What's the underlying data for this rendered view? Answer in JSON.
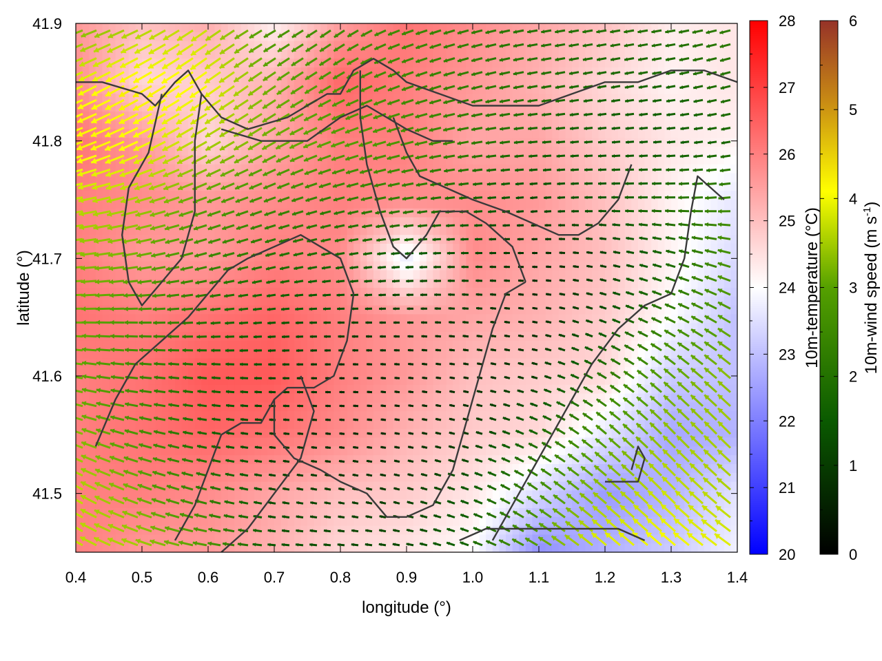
{
  "chart_data": {
    "type": "heatmap",
    "title": "",
    "xlabel": "longitude (°)",
    "ylabel": "latitude (°)",
    "xlim": [
      0.4,
      1.4
    ],
    "ylim": [
      41.45,
      41.9
    ],
    "x_ticks": [
      "0.4",
      "0.5",
      "0.6",
      "0.7",
      "0.8",
      "0.9",
      "1.0",
      "1.1",
      "1.2",
      "1.3",
      "1.4"
    ],
    "y_ticks": [
      "41.5",
      "41.6",
      "41.7",
      "41.8",
      "41.9"
    ],
    "colorbars": [
      {
        "label": "10m-temperature (°C)",
        "range": [
          20,
          28
        ],
        "ticks": [
          "20",
          "21",
          "22",
          "23",
          "24",
          "25",
          "26",
          "27",
          "28"
        ],
        "colors": [
          "#0000ff",
          "#ffffff",
          "#ff0000"
        ]
      },
      {
        "label": "10m-wind speed (m s",
        "label_sup": "-1",
        "label_end": ")",
        "range": [
          0,
          6
        ],
        "ticks": [
          "0",
          "1",
          "2",
          "3",
          "4",
          "5",
          "6"
        ],
        "colors": [
          "#000000",
          "#0a5a00",
          "#55a000",
          "#ffff00",
          "#c88a14",
          "#963228"
        ]
      }
    ],
    "temperature_field": {
      "lon": [
        0.4,
        0.5,
        0.6,
        0.7,
        0.8,
        0.9,
        1.0,
        1.1,
        1.2,
        1.3,
        1.4
      ],
      "lat": [
        41.9,
        41.85,
        41.8,
        41.75,
        41.7,
        41.65,
        41.6,
        41.55,
        41.5,
        41.45
      ],
      "values_c": [
        [
          25.6,
          25.0,
          25.3,
          24.2,
          25.5,
          26.2,
          25.8,
          25.4,
          25.0,
          24.3,
          24.4
        ],
        [
          25.8,
          24.6,
          24.8,
          25.2,
          26.4,
          26.0,
          25.6,
          25.2,
          24.6,
          24.2,
          24.4
        ],
        [
          26.2,
          25.6,
          24.6,
          25.4,
          26.0,
          26.0,
          25.4,
          25.4,
          24.8,
          24.4,
          24.2
        ],
        [
          26.0,
          25.8,
          25.6,
          25.8,
          26.0,
          25.8,
          25.8,
          25.6,
          25.0,
          24.2,
          23.6
        ],
        [
          26.0,
          25.6,
          25.6,
          26.0,
          25.8,
          23.6,
          25.8,
          25.4,
          25.0,
          24.2,
          23.4
        ],
        [
          26.2,
          26.0,
          26.2,
          26.4,
          26.0,
          25.6,
          25.4,
          25.2,
          24.8,
          24.0,
          23.0
        ],
        [
          26.0,
          26.2,
          26.6,
          26.6,
          26.0,
          25.6,
          25.0,
          24.8,
          24.6,
          23.2,
          23.0
        ],
        [
          26.0,
          26.2,
          26.4,
          26.2,
          25.8,
          25.2,
          24.8,
          24.6,
          23.6,
          22.6,
          22.8
        ],
        [
          26.0,
          26.0,
          25.8,
          25.4,
          25.0,
          24.8,
          24.4,
          23.4,
          22.4,
          22.8,
          23.6
        ],
        [
          26.0,
          25.6,
          25.6,
          25.2,
          24.6,
          24.4,
          24.0,
          22.2,
          22.8,
          23.2,
          23.8
        ]
      ]
    },
    "wind_field": {
      "lon": [
        0.4,
        0.5,
        0.6,
        0.7,
        0.8,
        0.9,
        1.0,
        1.1,
        1.2,
        1.3,
        1.4
      ],
      "lat": [
        41.9,
        41.85,
        41.8,
        41.75,
        41.7,
        41.65,
        41.6,
        41.55,
        41.5,
        41.45
      ],
      "speed_m_s": [
        [
          2.6,
          3.0,
          3.2,
          2.2,
          2.0,
          2.0,
          1.8,
          1.6,
          1.6,
          1.6,
          1.8
        ],
        [
          3.4,
          3.8,
          3.6,
          2.6,
          2.2,
          2.0,
          1.8,
          1.6,
          1.4,
          1.4,
          1.6
        ],
        [
          3.8,
          3.6,
          3.0,
          2.6,
          2.4,
          2.2,
          1.8,
          1.4,
          1.2,
          1.2,
          1.4
        ],
        [
          3.2,
          3.0,
          2.4,
          2.0,
          1.8,
          1.8,
          1.4,
          1.0,
          1.2,
          1.6,
          2.0
        ],
        [
          2.8,
          2.6,
          2.0,
          1.6,
          1.4,
          1.2,
          1.0,
          0.6,
          0.8,
          1.4,
          2.2
        ],
        [
          2.6,
          2.2,
          1.6,
          1.2,
          1.0,
          0.8,
          0.8,
          0.6,
          1.0,
          1.8,
          2.4
        ],
        [
          2.6,
          2.0,
          1.4,
          1.0,
          0.6,
          0.6,
          0.6,
          0.8,
          1.6,
          2.4,
          2.8
        ],
        [
          2.8,
          2.2,
          1.4,
          0.8,
          0.6,
          0.6,
          0.8,
          1.4,
          2.2,
          2.8,
          3.0
        ],
        [
          3.2,
          2.6,
          1.8,
          1.0,
          0.8,
          0.8,
          1.2,
          2.0,
          2.8,
          3.2,
          3.0
        ],
        [
          3.2,
          3.0,
          2.4,
          1.2,
          1.0,
          1.0,
          1.4,
          2.4,
          3.4,
          3.6,
          3.4
        ]
      ],
      "direction_toward_deg": [
        [
          200,
          205,
          215,
          210,
          215,
          200,
          195,
          190,
          190,
          190,
          195
        ],
        [
          205,
          210,
          215,
          215,
          210,
          200,
          195,
          190,
          190,
          190,
          195
        ],
        [
          200,
          205,
          210,
          210,
          200,
          195,
          190,
          185,
          185,
          185,
          190
        ],
        [
          190,
          195,
          200,
          200,
          195,
          190,
          185,
          185,
          180,
          180,
          185
        ],
        [
          185,
          190,
          195,
          195,
          190,
          185,
          180,
          180,
          170,
          165,
          165
        ],
        [
          180,
          180,
          185,
          185,
          180,
          180,
          175,
          170,
          160,
          155,
          150
        ],
        [
          170,
          175,
          175,
          180,
          180,
          175,
          170,
          165,
          150,
          140,
          140
        ],
        [
          160,
          165,
          170,
          175,
          175,
          170,
          165,
          155,
          140,
          135,
          135
        ],
        [
          150,
          160,
          165,
          170,
          170,
          165,
          160,
          145,
          140,
          135,
          140
        ],
        [
          150,
          160,
          170,
          175,
          175,
          170,
          160,
          150,
          140,
          140,
          145
        ]
      ]
    },
    "boundaries_lonlat": [
      [
        [
          0.4,
          41.85
        ],
        [
          0.44,
          41.85
        ],
        [
          0.5,
          41.84
        ],
        [
          0.52,
          41.83
        ],
        [
          0.55,
          41.85
        ],
        [
          0.57,
          41.86
        ],
        [
          0.59,
          41.84
        ],
        [
          0.62,
          41.82
        ],
        [
          0.66,
          41.81
        ],
        [
          0.72,
          41.82
        ],
        [
          0.78,
          41.84
        ],
        [
          0.8,
          41.84
        ],
        [
          0.82,
          41.86
        ],
        [
          0.85,
          41.87
        ],
        [
          0.88,
          41.86
        ],
        [
          0.9,
          41.85
        ],
        [
          0.95,
          41.84
        ],
        [
          1.0,
          41.83
        ],
        [
          1.05,
          41.83
        ],
        [
          1.1,
          41.83
        ],
        [
          1.15,
          41.84
        ],
        [
          1.2,
          41.85
        ],
        [
          1.25,
          41.85
        ],
        [
          1.3,
          41.86
        ],
        [
          1.35,
          41.86
        ],
        [
          1.4,
          41.85
        ]
      ],
      [
        [
          0.53,
          41.84
        ],
        [
          0.51,
          41.79
        ],
        [
          0.48,
          41.76
        ],
        [
          0.47,
          41.72
        ],
        [
          0.48,
          41.68
        ],
        [
          0.5,
          41.66
        ],
        [
          0.53,
          41.68
        ],
        [
          0.56,
          41.7
        ],
        [
          0.58,
          41.74
        ],
        [
          0.58,
          41.8
        ],
        [
          0.59,
          41.84
        ]
      ],
      [
        [
          0.62,
          41.81
        ],
        [
          0.68,
          41.8
        ],
        [
          0.75,
          41.8
        ],
        [
          0.8,
          41.82
        ],
        [
          0.84,
          41.83
        ],
        [
          0.87,
          41.82
        ],
        [
          0.9,
          41.81
        ],
        [
          0.94,
          41.8
        ],
        [
          0.97,
          41.8
        ]
      ],
      [
        [
          0.88,
          41.82
        ],
        [
          0.9,
          41.79
        ],
        [
          0.92,
          41.77
        ],
        [
          0.96,
          41.76
        ],
        [
          1.0,
          41.75
        ],
        [
          1.05,
          41.74
        ],
        [
          1.09,
          41.73
        ],
        [
          1.13,
          41.72
        ],
        [
          1.16,
          41.72
        ],
        [
          1.19,
          41.73
        ],
        [
          1.22,
          41.75
        ],
        [
          1.24,
          41.78
        ]
      ],
      [
        [
          0.83,
          41.86
        ],
        [
          0.83,
          41.82
        ],
        [
          0.84,
          41.78
        ],
        [
          0.86,
          41.74
        ],
        [
          0.88,
          41.71
        ],
        [
          0.9,
          41.7
        ],
        [
          0.93,
          41.72
        ],
        [
          0.95,
          41.74
        ],
        [
          0.99,
          41.74
        ],
        [
          1.02,
          41.73
        ],
        [
          1.06,
          41.71
        ],
        [
          1.08,
          41.68
        ]
      ],
      [
        [
          0.43,
          41.54
        ],
        [
          0.46,
          41.58
        ],
        [
          0.49,
          41.61
        ],
        [
          0.53,
          41.63
        ],
        [
          0.57,
          41.65
        ],
        [
          0.6,
          41.67
        ],
        [
          0.63,
          41.69
        ],
        [
          0.66,
          41.7
        ],
        [
          0.7,
          41.71
        ],
        [
          0.74,
          41.72
        ],
        [
          0.77,
          41.71
        ],
        [
          0.8,
          41.7
        ],
        [
          0.82,
          41.67
        ]
      ],
      [
        [
          0.82,
          41.67
        ],
        [
          0.81,
          41.63
        ],
        [
          0.79,
          41.6
        ],
        [
          0.76,
          41.59
        ],
        [
          0.72,
          41.59
        ],
        [
          0.7,
          41.58
        ],
        [
          0.7,
          41.55
        ],
        [
          0.73,
          41.53
        ],
        [
          0.77,
          41.52
        ],
        [
          0.8,
          41.51
        ],
        [
          0.84,
          41.5
        ],
        [
          0.87,
          41.48
        ],
        [
          0.9,
          41.48
        ],
        [
          0.94,
          41.49
        ],
        [
          0.97,
          41.52
        ],
        [
          0.99,
          41.56
        ],
        [
          1.01,
          41.6
        ],
        [
          1.03,
          41.64
        ],
        [
          1.05,
          41.67
        ],
        [
          1.08,
          41.68
        ]
      ],
      [
        [
          0.55,
          41.46
        ],
        [
          0.58,
          41.49
        ],
        [
          0.6,
          41.52
        ],
        [
          0.62,
          41.55
        ],
        [
          0.65,
          41.56
        ],
        [
          0.68,
          41.56
        ],
        [
          0.7,
          41.58
        ]
      ],
      [
        [
          1.03,
          41.46
        ],
        [
          1.06,
          41.49
        ],
        [
          1.09,
          41.52
        ],
        [
          1.12,
          41.55
        ],
        [
          1.15,
          41.58
        ],
        [
          1.18,
          41.61
        ],
        [
          1.22,
          41.64
        ],
        [
          1.26,
          41.66
        ],
        [
          1.3,
          41.67
        ],
        [
          1.32,
          41.7
        ],
        [
          1.33,
          41.74
        ],
        [
          1.34,
          41.77
        ],
        [
          1.36,
          41.76
        ],
        [
          1.38,
          41.75
        ]
      ],
      [
        [
          1.2,
          41.51
        ],
        [
          1.25,
          41.51
        ],
        [
          1.26,
          41.53
        ],
        [
          1.25,
          41.54
        ],
        [
          1.24,
          41.52
        ]
      ],
      [
        [
          0.98,
          41.46
        ],
        [
          1.02,
          41.47
        ],
        [
          1.08,
          41.47
        ],
        [
          1.12,
          41.47
        ],
        [
          1.16,
          41.47
        ],
        [
          1.22,
          41.47
        ],
        [
          1.26,
          41.46
        ]
      ],
      [
        [
          0.62,
          41.45
        ],
        [
          0.66,
          41.47
        ],
        [
          0.7,
          41.5
        ],
        [
          0.74,
          41.53
        ],
        [
          0.76,
          41.57
        ],
        [
          0.74,
          41.6
        ]
      ]
    ]
  }
}
